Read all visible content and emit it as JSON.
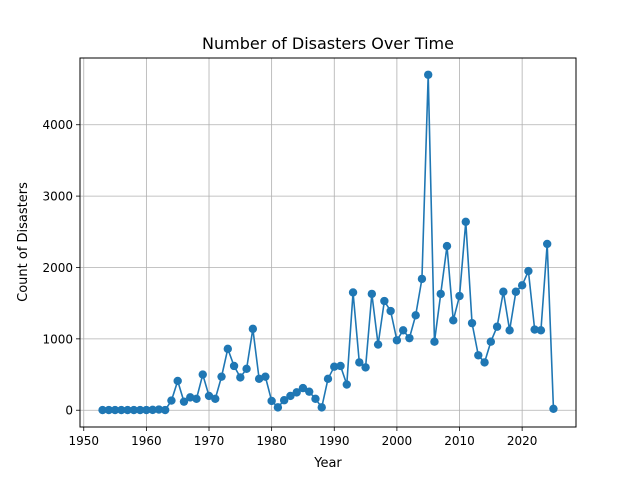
{
  "chart_data": {
    "type": "line",
    "title": "Number of Disasters Over Time",
    "xlabel": "Year",
    "ylabel": "Count of Disasters",
    "xlim": [
      1949.4,
      2028.6
    ],
    "ylim": [
      -235,
      4935
    ],
    "xticks": [
      1950,
      1960,
      1970,
      1980,
      1990,
      2000,
      2010,
      2020
    ],
    "yticks": [
      0,
      1000,
      2000,
      3000,
      4000
    ],
    "grid": true,
    "markers": true,
    "color": "#1f77b4",
    "series": [
      {
        "x": [
          1953,
          1954,
          1955,
          1956,
          1957,
          1958,
          1959,
          1960,
          1961,
          1962,
          1963,
          1964,
          1965,
          1966,
          1967,
          1968,
          1969,
          1970,
          1971,
          1972,
          1973,
          1974,
          1975,
          1976,
          1977,
          1978,
          1979,
          1980,
          1981,
          1982,
          1983,
          1984,
          1985,
          1986,
          1987,
          1988,
          1989,
          1990,
          1991,
          1992,
          1993,
          1994,
          1995,
          1996,
          1997,
          1998,
          1999,
          2000,
          2001,
          2002,
          2003,
          2004,
          2005,
          2006,
          2007,
          2008,
          2009,
          2010,
          2011,
          2012,
          2013,
          2014,
          2015,
          2016,
          2017,
          2018,
          2019,
          2020,
          2021,
          2022,
          2023,
          2024,
          2025
        ],
        "values": [
          2,
          3,
          2,
          2,
          2,
          2,
          2,
          3,
          5,
          10,
          3,
          135,
          410,
          120,
          180,
          160,
          500,
          200,
          160,
          470,
          860,
          620,
          460,
          580,
          1140,
          440,
          470,
          130,
          40,
          140,
          200,
          250,
          310,
          260,
          160,
          40,
          440,
          610,
          620,
          360,
          1650,
          670,
          600,
          1630,
          920,
          1530,
          1390,
          980,
          1120,
          1010,
          1330,
          1840,
          4700,
          960,
          1630,
          2300,
          1260,
          1600,
          2640,
          1220,
          770,
          670,
          960,
          1170,
          1660,
          1120,
          1660,
          1750,
          1950,
          1130,
          1120,
          2330,
          20
        ]
      }
    ]
  }
}
